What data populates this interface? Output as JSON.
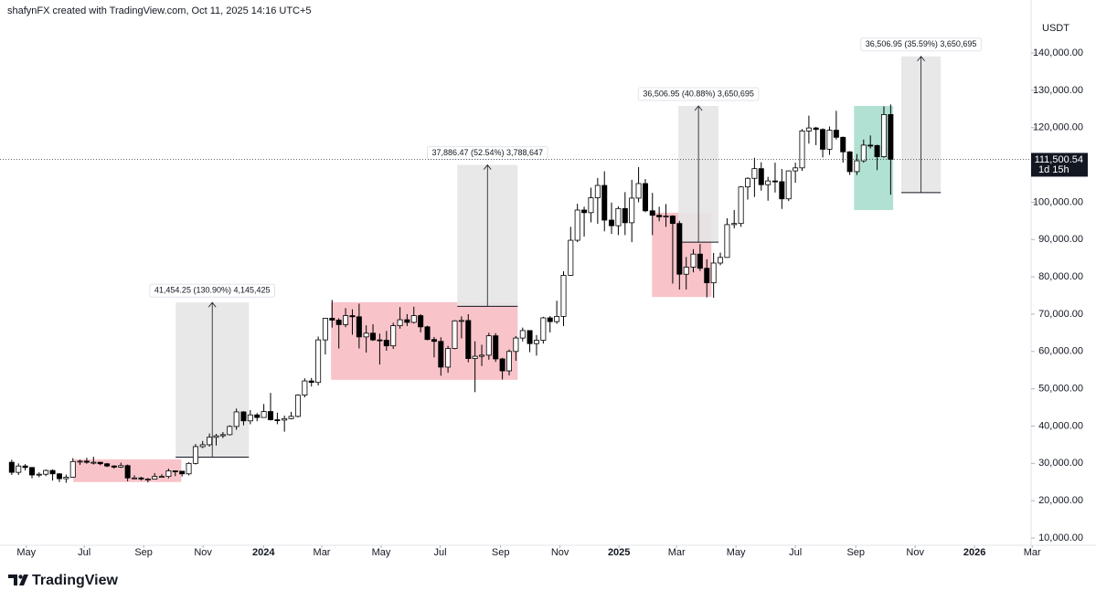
{
  "header": {
    "credit": "shafynFX created with TradingView.com, Oct 11, 2025 14:16 UTC+5"
  },
  "footer": {
    "brand": "TradingView"
  },
  "chart_data": {
    "type": "candlestick",
    "currency": "USDT",
    "up_color": "#ffffff",
    "down_color": "#000000",
    "outline_color": "#000000",
    "grid": false,
    "xlim": [
      2023.259,
      2026.159
    ],
    "xticks": [
      {
        "value": 2023.333,
        "label": "May"
      },
      {
        "value": 2023.496,
        "label": "Jul"
      },
      {
        "value": 2023.663,
        "label": "Sep"
      },
      {
        "value": 2023.83,
        "label": "Nov"
      },
      2024,
      {
        "value": 2024.164,
        "label": "Mar"
      },
      {
        "value": 2024.331,
        "label": "May"
      },
      {
        "value": 2024.497,
        "label": "Jul"
      },
      {
        "value": 2024.667,
        "label": "Sep"
      },
      {
        "value": 2024.834,
        "label": "Nov"
      },
      2025,
      {
        "value": 2025.162,
        "label": "Mar"
      },
      {
        "value": 2025.329,
        "label": "May"
      },
      {
        "value": 2025.496,
        "label": "Jul"
      },
      {
        "value": 2025.666,
        "label": "Sep"
      },
      {
        "value": 2025.833,
        "label": "Nov"
      },
      2026,
      {
        "value": 2026.162,
        "label": "Mar"
      }
    ],
    "ylim": [
      8050,
      154200
    ],
    "yticks": [
      {
        "value": 10000,
        "label": "10,000.00"
      },
      {
        "value": 20000,
        "label": "20,000.00"
      },
      {
        "value": 30000,
        "label": "30,000.00"
      },
      {
        "value": 40000,
        "label": "40,000.00"
      },
      {
        "value": 50000,
        "label": "50,000.00"
      },
      {
        "value": 60000,
        "label": "60,000.00"
      },
      {
        "value": 70000,
        "label": "70,000.00"
      },
      {
        "value": 80000,
        "label": "80,000.00"
      },
      {
        "value": 90000,
        "label": "90,000.00"
      },
      {
        "value": 100000,
        "label": "100,000.00"
      },
      {
        "value": 110000,
        "label": "110,000.00"
      },
      {
        "value": 120000,
        "label": "120,000.00"
      },
      {
        "value": 130000,
        "label": "130,000.00"
      },
      {
        "value": 140000,
        "label": "140,000.00"
      }
    ],
    "x": [
      2023.292,
      2023.311,
      2023.33,
      2023.349,
      2023.369,
      2023.388,
      2023.407,
      2023.426,
      2023.445,
      2023.464,
      2023.484,
      2023.503,
      2023.522,
      2023.541,
      2023.56,
      2023.58,
      2023.599,
      2023.618,
      2023.637,
      2023.656,
      2023.675,
      2023.694,
      2023.714,
      2023.733,
      2023.752,
      2023.771,
      2023.79,
      2023.809,
      2023.829,
      2023.848,
      2023.867,
      2023.886,
      2023.905,
      2023.924,
      2023.944,
      2023.963,
      2023.982,
      2024.001,
      2024.02,
      2024.039,
      2024.059,
      2024.078,
      2024.097,
      2024.116,
      2024.135,
      2024.154,
      2024.174,
      2024.193,
      2024.212,
      2024.231,
      2024.25,
      2024.269,
      2024.289,
      2024.308,
      2024.327,
      2024.346,
      2024.365,
      2024.384,
      2024.404,
      2024.423,
      2024.442,
      2024.461,
      2024.48,
      2024.499,
      2024.519,
      2024.538,
      2024.557,
      2024.576,
      2024.595,
      2024.614,
      2024.634,
      2024.653,
      2024.672,
      2024.691,
      2024.71,
      2024.729,
      2024.749,
      2024.768,
      2024.787,
      2024.806,
      2024.825,
      2024.844,
      2024.864,
      2024.883,
      2024.902,
      2024.921,
      2024.94,
      2024.959,
      2024.979,
      2024.998,
      2025.017,
      2025.036,
      2025.055,
      2025.074,
      2025.094,
      2025.113,
      2025.132,
      2025.151,
      2025.17,
      2025.189,
      2025.209,
      2025.228,
      2025.247,
      2025.266,
      2025.285,
      2025.304,
      2025.324,
      2025.343,
      2025.362,
      2025.381,
      2025.4,
      2025.419,
      2025.439,
      2025.458,
      2025.477,
      2025.496,
      2025.515,
      2025.534,
      2025.554,
      2025.573,
      2025.592,
      2025.611,
      2025.63,
      2025.649,
      2025.669,
      2025.688,
      2025.707,
      2025.726,
      2025.745,
      2025.764
    ],
    "open": [
      30300,
      27600,
      29300,
      28900,
      26900,
      27100,
      28100,
      27200,
      25900,
      26300,
      30500,
      30600,
      30300,
      30300,
      29900,
      29300,
      29000,
      29400,
      26100,
      26100,
      25800,
      25800,
      26500,
      26500,
      28000,
      27900,
      27200,
      30000,
      34500,
      35000,
      37000,
      37400,
      37700,
      39900,
      43800,
      41400,
      43000,
      42300,
      43900,
      41700,
      41600,
      42000,
      42600,
      48300,
      52100,
      51700,
      63100,
      68900,
      68400,
      67200,
      69600,
      69300,
      63900,
      64900,
      63100,
      63000,
      61500,
      66900,
      68500,
      67800,
      69600,
      66600,
      63200,
      62700,
      55800,
      60800,
      68200,
      68300,
      58100,
      58700,
      59000,
      64200,
      58000,
      54800,
      60000,
      63600,
      65600,
      62100,
      63000,
      69000,
      68000,
      69400,
      80400,
      89800,
      97900,
      97200,
      101200,
      104500,
      95200,
      93700,
      98300,
      94500,
      101100,
      105000,
      97700,
      96500,
      96100,
      96300,
      94300,
      80700,
      82600,
      86100,
      82300,
      78400,
      83700,
      85200,
      94000,
      94300,
      104100,
      106400,
      109000,
      104700,
      105700,
      105500,
      100900,
      108400,
      109200,
      119100,
      119900,
      119500,
      114200,
      119300,
      117400,
      113500,
      108200,
      111100,
      115300,
      115200,
      112200,
      123500
    ],
    "high": [
      31000,
      30000,
      29800,
      29000,
      27600,
      28400,
      28400,
      27400,
      27000,
      31400,
      31000,
      31500,
      31800,
      30400,
      30100,
      29500,
      30200,
      29700,
      26800,
      26400,
      26100,
      27400,
      27100,
      28600,
      28100,
      27900,
      30300,
      35200,
      36000,
      38000,
      37900,
      38400,
      40200,
      44700,
      44000,
      44300,
      43500,
      45900,
      48900,
      43600,
      42800,
      43800,
      48500,
      52800,
      52900,
      64000,
      69000,
      73800,
      68900,
      71600,
      71300,
      72800,
      67000,
      67300,
      64800,
      65500,
      67700,
      71900,
      70000,
      72000,
      70000,
      66900,
      63900,
      63800,
      61500,
      68400,
      69400,
      70000,
      62700,
      61800,
      65000,
      64900,
      58300,
      60500,
      64100,
      66400,
      65700,
      64400,
      69300,
      69500,
      73600,
      81500,
      93400,
      99600,
      98800,
      103900,
      106500,
      108300,
      99900,
      98900,
      102700,
      106000,
      109400,
      106200,
      102500,
      98800,
      99500,
      96500,
      95000,
      85300,
      87400,
      88800,
      84700,
      86400,
      86500,
      95700,
      97900,
      104300,
      106700,
      111900,
      110700,
      106800,
      110600,
      108900,
      108500,
      110600,
      119600,
      123200,
      120200,
      119800,
      120300,
      124500,
      117600,
      113700,
      112900,
      116800,
      117900,
      115400,
      125700,
      126200
    ],
    "low": [
      26900,
      26900,
      28100,
      26000,
      26300,
      26600,
      25400,
      25000,
      24800,
      26200,
      29600,
      29900,
      29700,
      29500,
      29000,
      28600,
      28800,
      25200,
      25800,
      25400,
      24900,
      25800,
      26200,
      26000,
      26600,
      26500,
      26800,
      29700,
      34100,
      34500,
      34800,
      36800,
      37500,
      39000,
      40200,
      40500,
      41300,
      42200,
      41500,
      40500,
      38500,
      41800,
      42300,
      47700,
      50600,
      50900,
      59200,
      66400,
      60800,
      66500,
      64500,
      60800,
      59700,
      62800,
      56500,
      60200,
      60700,
      66100,
      66800,
      67500,
      65100,
      63000,
      58400,
      53500,
      54300,
      60600,
      63500,
      57100,
      49100,
      56100,
      57800,
      57200,
      52500,
      53600,
      57500,
      62700,
      59800,
      58900,
      62100,
      65100,
      67400,
      66800,
      80300,
      89300,
      90800,
      94600,
      94200,
      92200,
      91500,
      91200,
      91200,
      89300,
      100000,
      97300,
      91200,
      94900,
      93400,
      78200,
      76600,
      76600,
      81200,
      81600,
      74500,
      74400,
      83100,
      85100,
      93000,
      93400,
      100700,
      101400,
      103100,
      100400,
      102600,
      98200,
      100300,
      105200,
      108400,
      115700,
      115300,
      112000,
      112700,
      116800,
      110600,
      107300,
      107300,
      110600,
      114400,
      108600,
      111900,
      102000
    ],
    "close": [
      27600,
      29300,
      28900,
      26900,
      27100,
      28100,
      27200,
      25900,
      26300,
      30500,
      30600,
      30300,
      30300,
      29900,
      29300,
      29000,
      29400,
      26100,
      26100,
      25800,
      25800,
      26500,
      26500,
      28000,
      27900,
      27200,
      30000,
      34500,
      35000,
      37000,
      37400,
      37700,
      39900,
      43800,
      41400,
      43000,
      42300,
      43900,
      41700,
      41600,
      42000,
      42600,
      48300,
      52100,
      51700,
      63100,
      68900,
      68400,
      67200,
      69600,
      69300,
      63900,
      64900,
      63100,
      63000,
      61500,
      66900,
      68500,
      67800,
      69600,
      66600,
      63200,
      62700,
      55800,
      60800,
      68200,
      68300,
      58100,
      58700,
      59000,
      64200,
      58000,
      54800,
      60000,
      63600,
      65600,
      62100,
      63000,
      69000,
      68000,
      69400,
      80400,
      89800,
      97900,
      97200,
      101200,
      104500,
      95200,
      93700,
      98300,
      94500,
      101100,
      105000,
      97700,
      96500,
      96100,
      96300,
      94300,
      80700,
      82600,
      86100,
      82300,
      78400,
      83700,
      85200,
      94000,
      94300,
      104100,
      106400,
      109000,
      104700,
      105700,
      105500,
      100900,
      108400,
      109200,
      119100,
      119900,
      119500,
      114200,
      119300,
      117400,
      113500,
      108200,
      111100,
      115300,
      115200,
      112200,
      123500,
      111500.54
    ],
    "ranges": [
      {
        "x": [
          2023.465,
          2023.769
        ],
        "y": [
          25000,
          31100
        ],
        "color": "#f7b9bf"
      },
      {
        "x": [
          2024.19,
          2024.715
        ],
        "y": [
          52400,
          73200
        ],
        "color": "#f7b9bf"
      },
      {
        "x": [
          2025.093,
          2025.26
        ],
        "y": [
          74600,
          97200
        ],
        "color": "#f7b9bf"
      },
      {
        "x": [
          2025.661,
          2025.771
        ],
        "y": [
          97900,
          125800
        ],
        "color": "#a3dccb"
      }
    ],
    "measures": [
      {
        "x": [
          2023.753,
          2023.959
        ],
        "from": 31668,
        "to": 73122,
        "label": "41,454.25 (130.90%) 4,145,425"
      },
      {
        "x": [
          2024.545,
          2024.715
        ],
        "from": 72109,
        "to": 109995,
        "label": "37,886.47 (52.54%) 3,788,647"
      },
      {
        "x": [
          2025.167,
          2025.28
        ],
        "from": 89303,
        "to": 125810,
        "label": "36,506.95 (40.88%) 3,650,695"
      },
      {
        "x": [
          2025.794,
          2025.905
        ],
        "from": 102576,
        "to": 139083,
        "label": "36,506.95 (35.59%) 3,650,695"
      }
    ],
    "measure_color": "#e6e6e6",
    "last_price": {
      "value": 111500.54,
      "label": "111,500.54"
    },
    "countdown": "1d 15h"
  }
}
